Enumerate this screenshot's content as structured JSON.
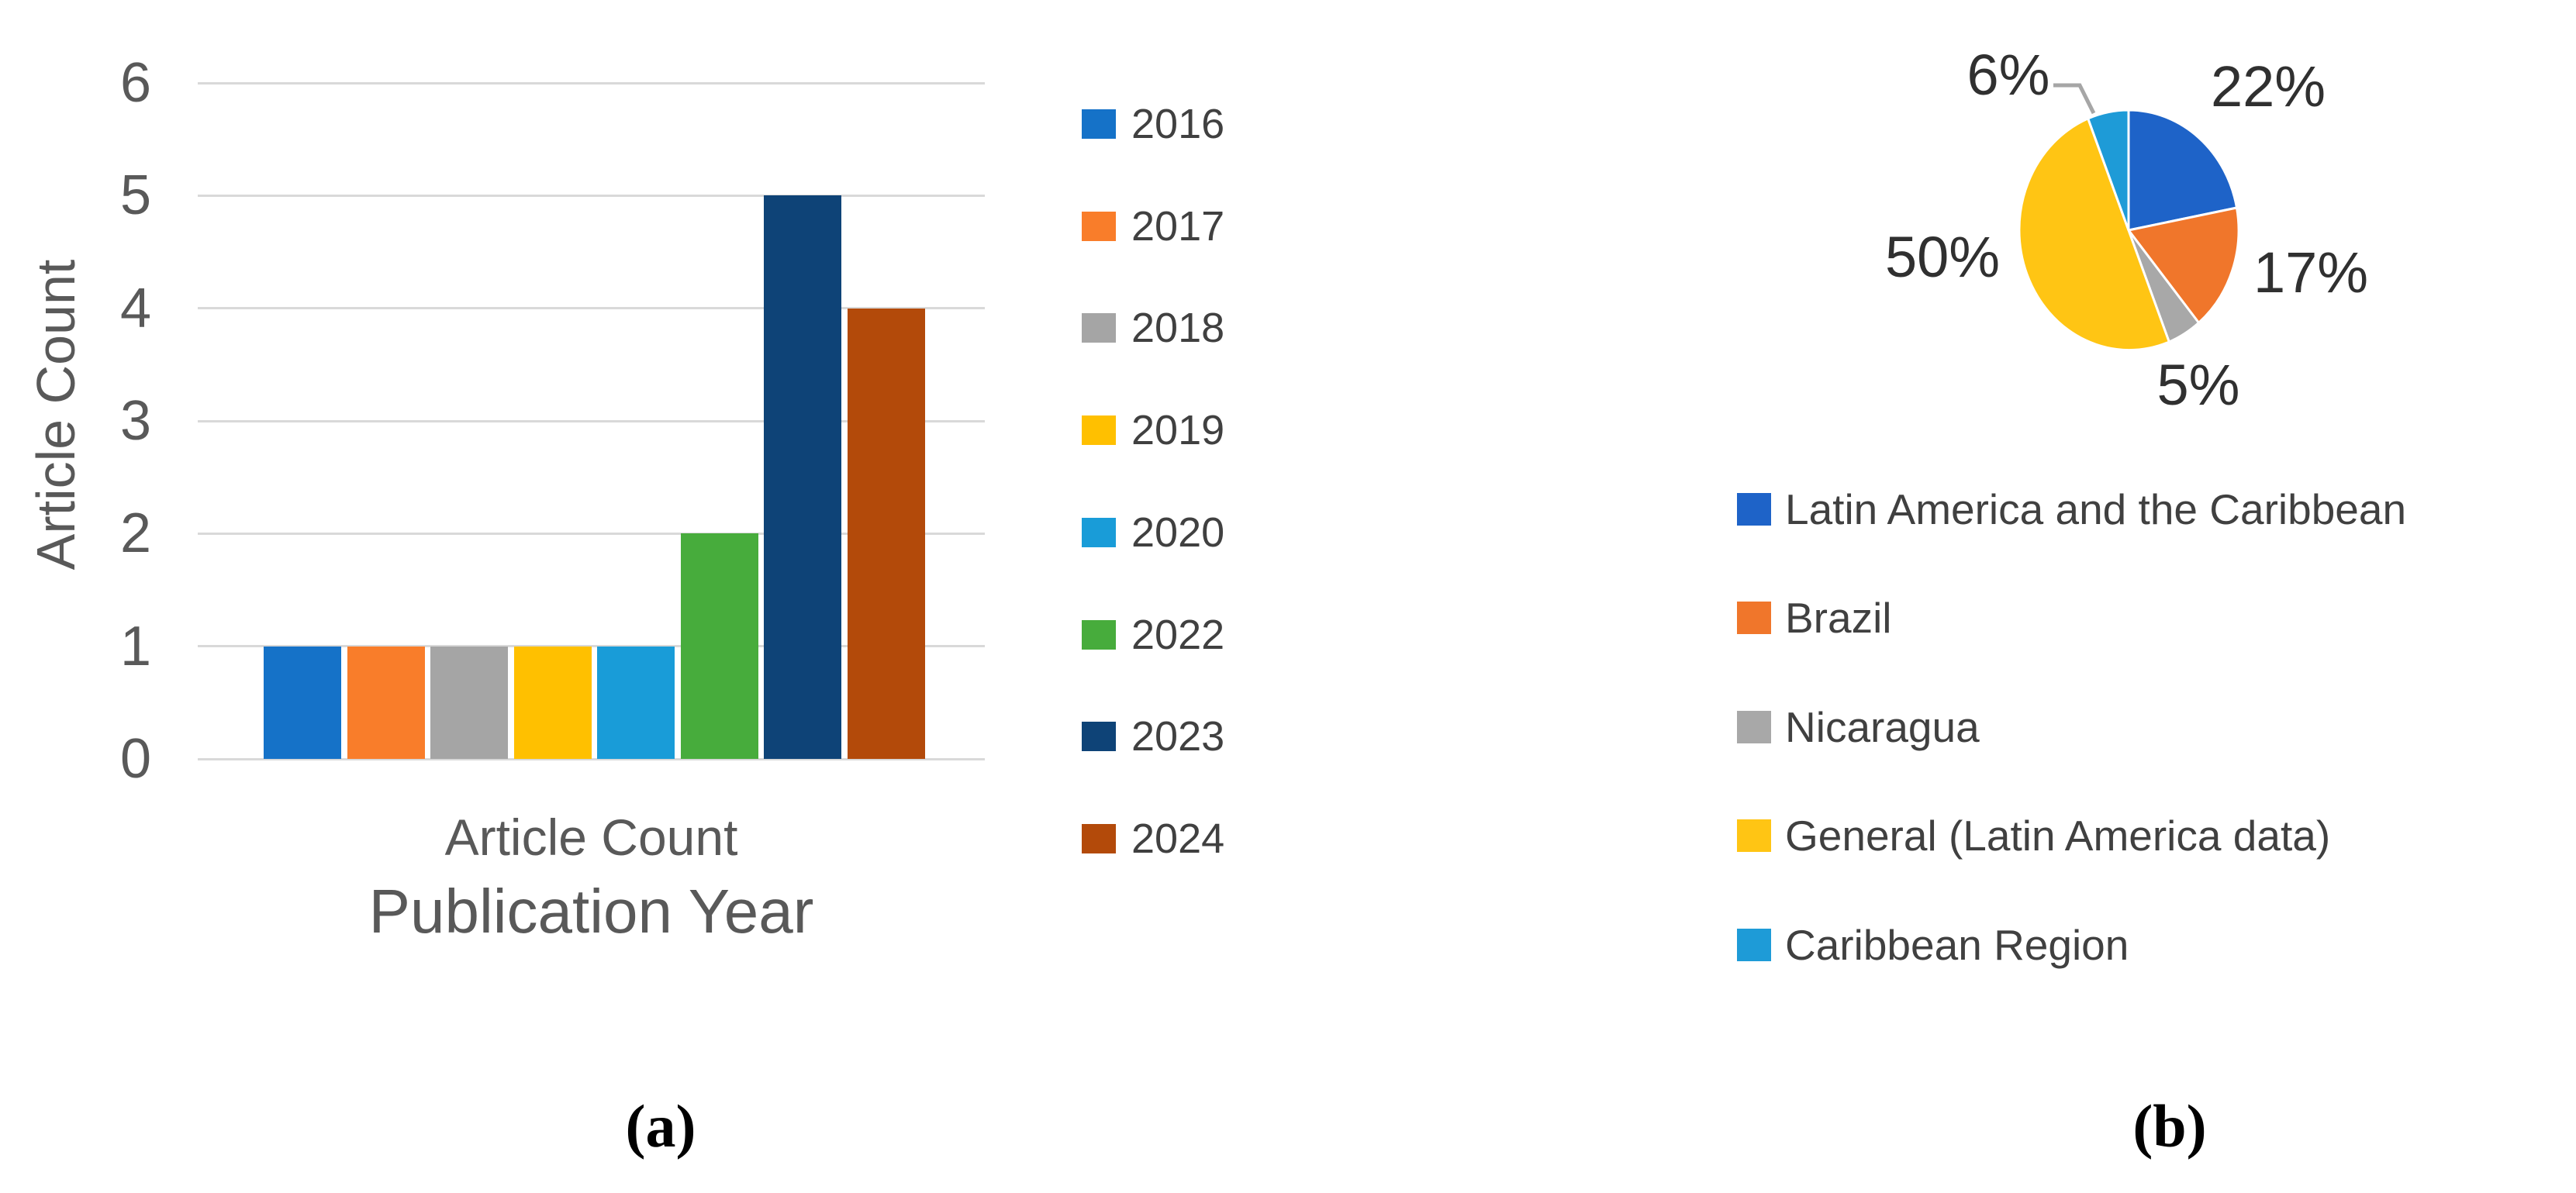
{
  "figure": {
    "caption_a": "(a)",
    "caption_b": "(b)"
  },
  "colors": {
    "gridline": "#d9d9d9",
    "axis_text": "#595959",
    "legend_text": "#404040",
    "pct_label_text": "#303030",
    "leader_line": "#a6a6a6"
  },
  "chart_data": [
    {
      "id": "article-count-by-year",
      "type": "bar",
      "title": "",
      "xlabel": "Publication Year",
      "ylabel": "Article Count",
      "x_category_label": "Article Count",
      "ylim": [
        0,
        6
      ],
      "y_ticks": [
        0,
        1,
        2,
        3,
        4,
        5,
        6
      ],
      "grid": true,
      "legend_position": "right",
      "categories": [
        "2016",
        "2017",
        "2018",
        "2019",
        "2020",
        "2022",
        "2023",
        "2024"
      ],
      "values": [
        1,
        1,
        1,
        1,
        1,
        2,
        5,
        4
      ],
      "series": [
        {
          "label": "2016",
          "value": 1,
          "color": "#1572c8"
        },
        {
          "label": "2017",
          "value": 1,
          "color": "#f97d2a"
        },
        {
          "label": "2018",
          "value": 1,
          "color": "#a5a5a5"
        },
        {
          "label": "2019",
          "value": 1,
          "color": "#ffc000"
        },
        {
          "label": "2020",
          "value": 1,
          "color": "#199cd8"
        },
        {
          "label": "2022",
          "value": 2,
          "color": "#47ac3c"
        },
        {
          "label": "2023",
          "value": 5,
          "color": "#0e4377"
        },
        {
          "label": "2024",
          "value": 4,
          "color": "#b34a0a"
        }
      ]
    },
    {
      "id": "articles-by-region",
      "type": "pie",
      "title": "",
      "legend_position": "bottom",
      "start_angle_deg": 0,
      "direction": "clockwise",
      "slices": [
        {
          "label": "Latin America and the Caribbean",
          "pct": 22,
          "pct_label": "22%",
          "color": "#1e63c8"
        },
        {
          "label": "Brazil",
          "pct": 17,
          "pct_label": "17%",
          "color": "#f0762b"
        },
        {
          "label": "Nicaragua",
          "pct": 5,
          "pct_label": "5%",
          "color": "#a8a8a8"
        },
        {
          "label": "General (Latin America data)",
          "pct": 50,
          "pct_label": "50%",
          "color": "#ffc514"
        },
        {
          "label": "Caribbean Region",
          "pct": 6,
          "pct_label": "6%",
          "color": "#1e9bd7"
        }
      ]
    }
  ]
}
